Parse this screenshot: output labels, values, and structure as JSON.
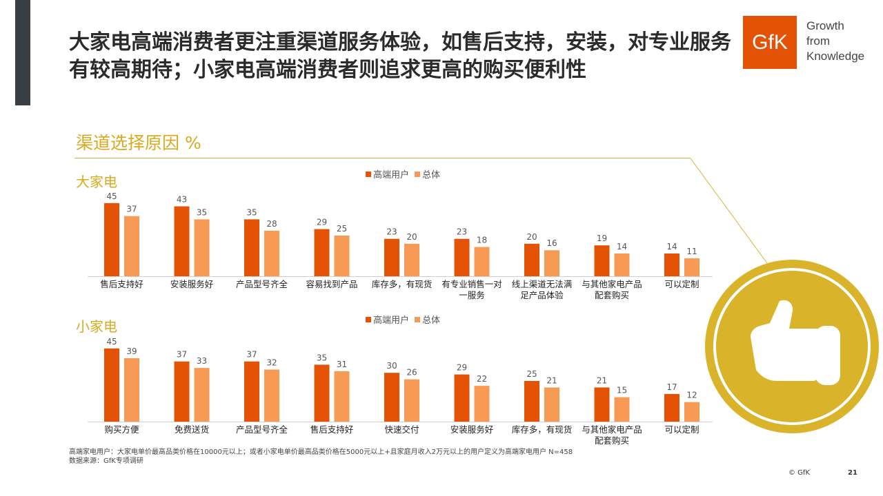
{
  "title": "大家电高端消费者更注重渠道服务体验，如售后支持，安装，对专业服务有较高期待；小家电高端消费者则追求更高的购买便利性",
  "logo": {
    "text": "GfK",
    "tagline": [
      "Growth",
      "from",
      "Knowledge"
    ],
    "color": "#e35205"
  },
  "section_title": "渠道选择原因 %",
  "colors": {
    "primary": "#e35205",
    "secondary": "#f79a55",
    "gold": "#d9a91e",
    "badge": "#d9b32a"
  },
  "icons": {
    "badge": "thumbs-up-icon"
  },
  "chart_data": [
    {
      "type": "bar",
      "label": "大家电",
      "categories": [
        "售后支持好",
        "安装服务好",
        "产品型号齐全",
        "容易找到产品",
        "库存多，有现货",
        "有专业销售一对\n一服务",
        "线上渠道无法满\n足产品体验",
        "与其他家电产品\n配套购买",
        "可以定制"
      ],
      "series": [
        {
          "name": "高端用户",
          "values": [
            45,
            43,
            35,
            29,
            23,
            23,
            20,
            19,
            14
          ]
        },
        {
          "name": "总体",
          "values": [
            37,
            35,
            28,
            25,
            20,
            18,
            16,
            14,
            11
          ]
        }
      ],
      "ylim": [
        0,
        50
      ]
    },
    {
      "type": "bar",
      "label": "小家电",
      "categories": [
        "购买方便",
        "免费送货",
        "产品型号齐全",
        "售后支持好",
        "快速交付",
        "安装服务好",
        "库存多，有现货",
        "与其他家电产品\n配套购买",
        "可以定制"
      ],
      "series": [
        {
          "name": "高端用户",
          "values": [
            45,
            37,
            37,
            35,
            30,
            29,
            25,
            21,
            17
          ]
        },
        {
          "name": "总体",
          "values": [
            39,
            33,
            32,
            31,
            26,
            22,
            21,
            15,
            12
          ]
        }
      ],
      "ylim": [
        0,
        50
      ]
    }
  ],
  "footnote": {
    "line1": "高端家电用户：大家电单价最高品类价格在10000元以上；或者小家电单价最高品类价格在5000元以上+且家庭月收入2万元以上的用户定义为高端家电用户 N=458",
    "line2": "数据来源：GfK专项调研"
  },
  "copyright": "© GfK",
  "page_number": "21"
}
